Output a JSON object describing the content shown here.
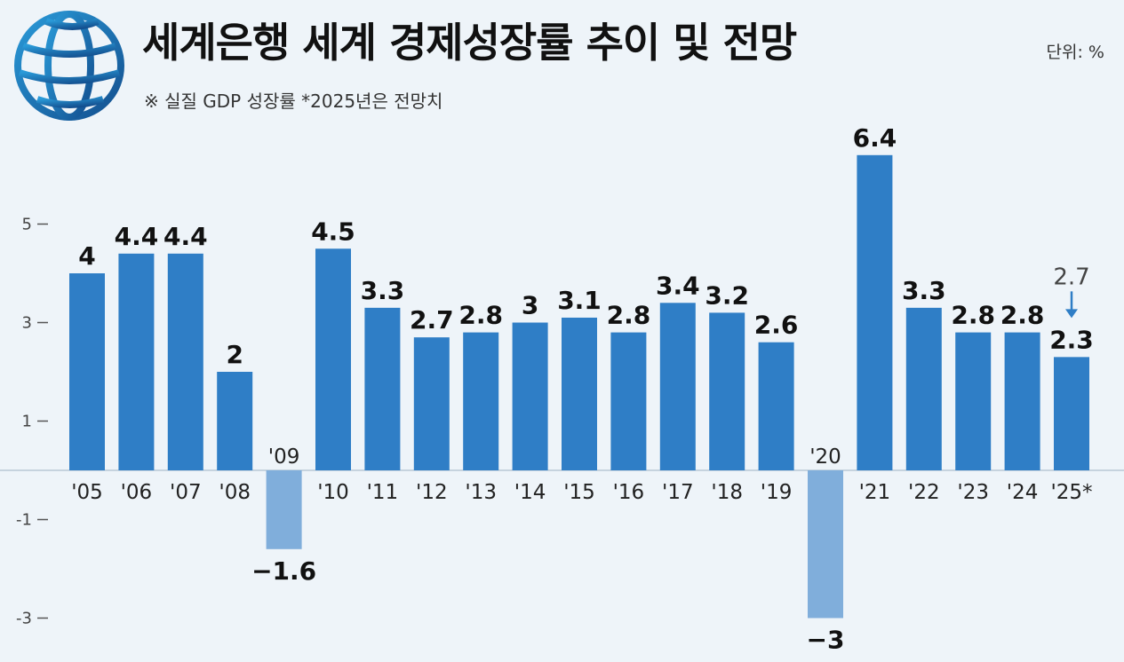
{
  "title": "세계은행 세계 경제성장률 추이 및 전망",
  "subtitle": "※ 실질 GDP 성장률  *2025년은 전망치",
  "unit": "단위: %",
  "logo_icon": "world-bank-globe-icon",
  "colors": {
    "positive": "#2f7ec6",
    "negative": "#80aedb",
    "forecast_text": "#2f7ec6",
    "previous_text": "#444444"
  },
  "chart_data": {
    "type": "bar",
    "categories": [
      "'05",
      "'06",
      "'07",
      "'08",
      "'09",
      "'10",
      "'11",
      "'12",
      "'13",
      "'14",
      "'15",
      "'16",
      "'17",
      "'18",
      "'19",
      "'20",
      "'21",
      "'22",
      "'23",
      "'24",
      "'25*"
    ],
    "values": [
      4,
      4.4,
      4.4,
      2,
      -1.6,
      4.5,
      3.3,
      2.7,
      2.8,
      3,
      3.1,
      2.8,
      3.4,
      3.2,
      2.6,
      -3,
      6.4,
      3.3,
      2.8,
      2.8,
      2.3
    ],
    "value_labels": [
      "4",
      "4.4",
      "4.4",
      "2",
      "−1.6",
      "4.5",
      "3.3",
      "2.7",
      "2.8",
      "3",
      "3.1",
      "2.8",
      "3.4",
      "3.2",
      "2.6",
      "−3",
      "6.4",
      "3.3",
      "2.8",
      "2.8",
      "2.3"
    ],
    "yticks": [
      5,
      3,
      1,
      -1,
      -3
    ],
    "ytick_labels": [
      "5",
      "3",
      "1",
      "-1",
      "-3"
    ],
    "ylim": [
      -3.6,
      7
    ],
    "forecast_revision": {
      "category": "'25*",
      "previous": "2.7",
      "revised": 2.3
    }
  }
}
